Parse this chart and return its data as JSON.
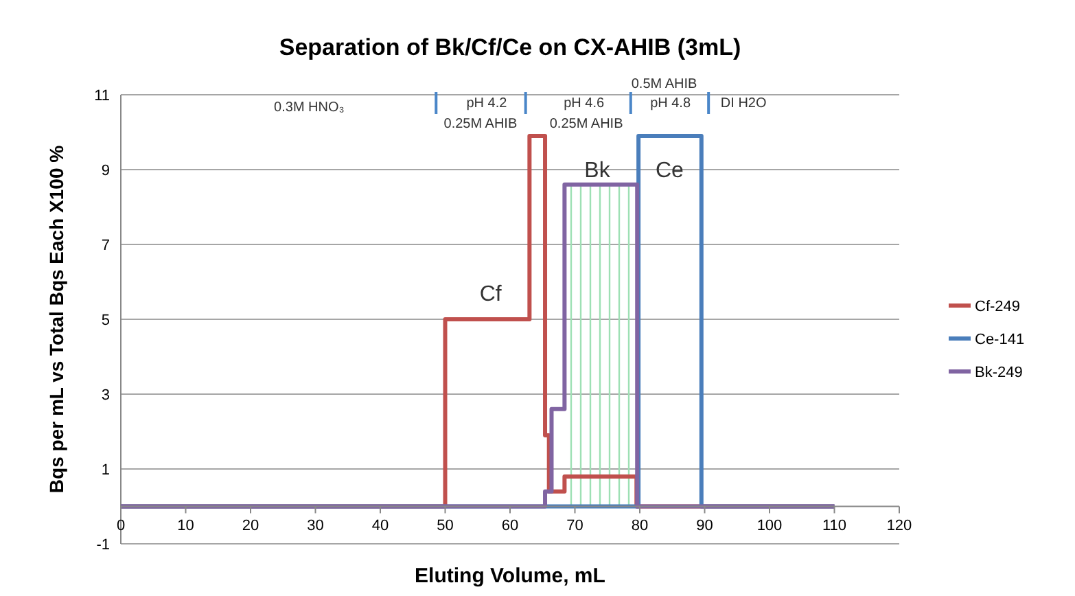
{
  "chart_data": {
    "type": "step",
    "title": "Separation of Bk/Cf/Ce on CX-AHIB (3mL)",
    "xlabel": "Eluting Volume, mL",
    "ylabel": "Bqs per mL vs Total Bqs Each X100 %",
    "xlim": [
      0,
      120
    ],
    "xticks": [
      0,
      10,
      20,
      30,
      40,
      50,
      60,
      70,
      80,
      90,
      100,
      110,
      120
    ],
    "ylim": [
      -1,
      11
    ],
    "yticks": [
      -1,
      1,
      3,
      5,
      7,
      9,
      11
    ],
    "grid": "y",
    "legend": "right",
    "line_style": "solid",
    "marker": "none",
    "series": [
      {
        "name": "Cf-249",
        "color": "#c0504d",
        "x": [
          0,
          50,
          63,
          65.4,
          66,
          68.4,
          79.5,
          110
        ],
        "values": [
          0,
          5,
          9.9,
          1.9,
          0.4,
          0.8,
          0,
          0
        ]
      },
      {
        "name": "Ce-141",
        "color": "#4a7ebb",
        "x": [
          0,
          79.8,
          89.5,
          110
        ],
        "values": [
          0,
          9.9,
          0,
          0
        ]
      },
      {
        "name": "Bk-249",
        "color": "#8064a2",
        "x": [
          0,
          65.4,
          66.4,
          68.4,
          79.6,
          110
        ],
        "values": [
          0,
          0.4,
          2.6,
          8.6,
          0,
          0
        ]
      }
    ],
    "bands": [
      {
        "axis": "x",
        "from": 69,
        "to": 79,
        "color": "#9ee0b4"
      }
    ],
    "annotations": [
      "0.3M HNO₃",
      "pH 4.2",
      "0.25M AHIB",
      "pH 4.6",
      "0.25M AHIB",
      "pH 4.8",
      "0.5M AHIB",
      "DI H2O",
      "Cf",
      "Bk",
      "Ce"
    ]
  }
}
